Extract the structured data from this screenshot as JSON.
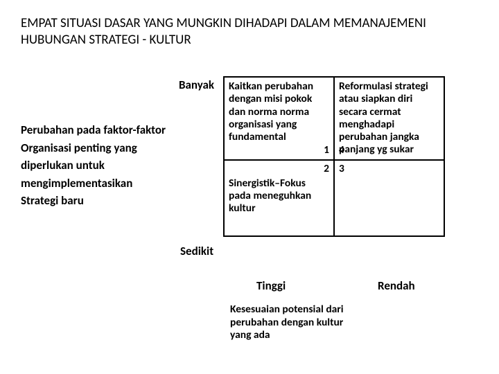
{
  "title": "EMPAT SITUASI DASAR YANG MUNGKIN DIHADAPI DALAM MEMANAJEMENI HUBUNGAN STRATEGI - KULTUR",
  "y_axis": {
    "top": "Banyak",
    "bottom": "Sedikit",
    "label_lines": [
      "Perubahan pada faktor-faktor",
      "Organisasi penting yang",
      "diperlukan untuk",
      "mengimplementasikan",
      "Strategi baru"
    ]
  },
  "x_axis": {
    "left": "Tinggi",
    "right": "Rendah",
    "label": "Kesesuaian potensial dari perubahan dengan kultur yang ada"
  },
  "quadrants": {
    "q1": {
      "num": "1",
      "text": "Kaitkan perubahan dengan misi pokok dan norma norma organisasi yang fundamental"
    },
    "q4": {
      "num": "4",
      "text": "Reformulasi strategi atau siapkan diri secara cermat menghadapi perubahan jangka panjang yg sukar"
    },
    "q2": {
      "num": "2",
      "text": "Sinergistik–Fokus pada meneguhkan kultur"
    },
    "q3": {
      "num": "3",
      "text": ""
    }
  },
  "colors": {
    "background": "#ffffff",
    "text": "#000000",
    "border": "#000000"
  },
  "fontsize": {
    "title": 19,
    "axis": 17,
    "cell": 15.5
  }
}
